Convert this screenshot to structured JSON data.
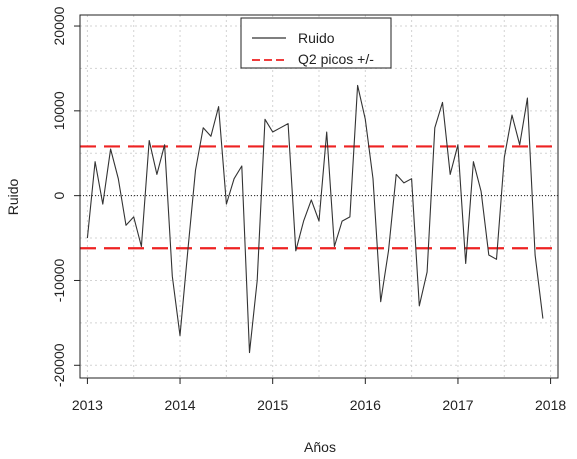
{
  "chart_data": {
    "type": "line",
    "xlabel": "Años",
    "ylabel": "Ruido",
    "xlim": [
      2012.92,
      2018.08
    ],
    "ylim": [
      -21500,
      21300
    ],
    "x_ticks": [
      2013,
      2014,
      2015,
      2016,
      2017,
      2018
    ],
    "x_tick_labels": [
      "2013",
      "2014",
      "2015",
      "2016",
      "2017",
      "2018"
    ],
    "y_ticks": [
      -20000,
      -10000,
      0,
      10000,
      20000
    ],
    "y_tick_labels": [
      "-20000",
      "-10000",
      "0",
      "10000",
      "20000"
    ],
    "grid": true,
    "legend_position": "top-center",
    "series": [
      {
        "name": "Ruido",
        "style": "solid",
        "color": "#333333",
        "x_start": 2013,
        "x_step": 0.08333,
        "values": [
          -5000,
          4000,
          -1000,
          5500,
          2000,
          -3500,
          -2500,
          -6000,
          6500,
          2500,
          6000,
          -9500,
          -16500,
          -6500,
          3000,
          8000,
          7000,
          10500,
          -1000,
          2000,
          3500,
          -18500,
          -10000,
          9000,
          7500,
          8000,
          8500,
          -6500,
          -3000,
          -500,
          -3000,
          7500,
          -6000,
          -3000,
          -2500,
          13000,
          9000,
          2000,
          -12500,
          -6500,
          2500,
          1500,
          2000,
          -13000,
          -9000,
          8000,
          11000,
          2500,
          6000,
          -8000,
          4000,
          500,
          -7000,
          -7500,
          4500,
          9500,
          6000,
          11500,
          -7000,
          -14500
        ]
      },
      {
        "name": "Q2 picos +/-",
        "style": "dashed",
        "color": "#ee2222",
        "values": [
          5800,
          -6200
        ]
      }
    ],
    "reference_line": {
      "y": 0,
      "style": "dotted"
    }
  },
  "colors": {
    "line": "#333333",
    "threshold": "#ee2222",
    "grid": "#d3d3d3"
  }
}
